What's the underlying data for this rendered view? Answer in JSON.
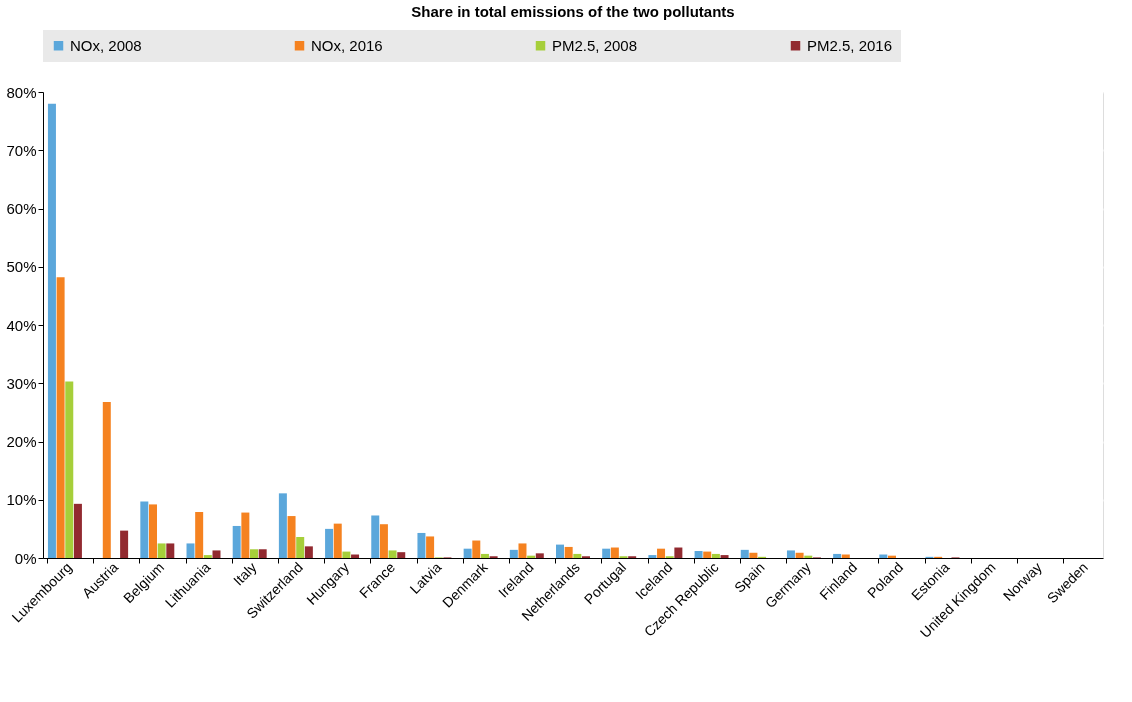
{
  "chart_data": {
    "type": "bar",
    "title": "Share in total emissions of the two pollutants",
    "categories": [
      "Luxembourg",
      "Austria",
      "Belgium",
      "Lithuania",
      "Italy",
      "Switzerland",
      "Hungary",
      "France",
      "Latvia",
      "Denmark",
      "Ireland",
      "Netherlands",
      "Portugal",
      "Iceland",
      "Czech Republic",
      "Spain",
      "Germany",
      "Finland",
      "Poland",
      "Estonia",
      "United Kingdom",
      "Norway",
      "Sweden"
    ],
    "series": [
      {
        "name": "NOx, 2008",
        "color": "#5ba7db",
        "values": [
          78,
          0,
          9.7,
          2.5,
          5.5,
          11.1,
          5.0,
          7.3,
          4.3,
          1.6,
          1.4,
          2.3,
          1.6,
          0.5,
          1.2,
          1.4,
          1.3,
          0.7,
          0.6,
          0.2,
          0,
          0,
          0
        ]
      },
      {
        "name": "NOx, 2016",
        "color": "#f58220",
        "values": [
          48.2,
          26.8,
          9.2,
          7.9,
          7.8,
          7.2,
          5.9,
          5.8,
          3.7,
          3.0,
          2.5,
          1.9,
          1.8,
          1.6,
          1.1,
          0.9,
          0.9,
          0.6,
          0.4,
          0.2,
          0,
          0,
          0
        ]
      },
      {
        "name": "PM2.5, 2008",
        "color": "#a6cf3a",
        "values": [
          30.3,
          0,
          2.5,
          0.5,
          1.5,
          3.6,
          1.1,
          1.3,
          0.1,
          0.7,
          0.4,
          0.7,
          0.3,
          0.3,
          0.7,
          0.2,
          0.4,
          0,
          0,
          0,
          0,
          0,
          0
        ]
      },
      {
        "name": "PM2.5, 2016",
        "color": "#922a30",
        "values": [
          9.3,
          4.7,
          2.5,
          1.3,
          1.5,
          2.0,
          0.6,
          1.0,
          0.1,
          0.3,
          0.8,
          0.3,
          0.3,
          1.8,
          0.5,
          0,
          0.1,
          0,
          0,
          0.1,
          0,
          0,
          0
        ]
      }
    ],
    "ylim": [
      0,
      80
    ],
    "yticks": [
      {
        "value": 0,
        "label": "0%"
      },
      {
        "value": 10,
        "label": "10%"
      },
      {
        "value": 20,
        "label": "20%"
      },
      {
        "value": 30,
        "label": "30%"
      },
      {
        "value": 40,
        "label": "40%"
      },
      {
        "value": 50,
        "label": "50%"
      },
      {
        "value": 60,
        "label": "60%"
      },
      {
        "value": 70,
        "label": "70%"
      },
      {
        "value": 80,
        "label": "80%"
      }
    ],
    "grid": true,
    "legend": "top"
  }
}
